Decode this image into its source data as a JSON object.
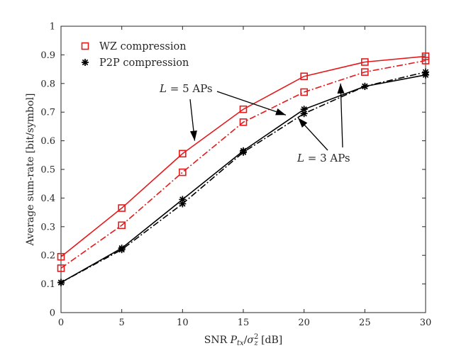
{
  "chart_data": {
    "type": "line",
    "title": "",
    "xlabel_prefix": "SNR ",
    "xlabel_math": "P",
    "xlabel_sub1": "tx",
    "xlabel_slash": "/",
    "xlabel_sigma": "σ",
    "xlabel_sup": "2",
    "xlabel_sub2": "z",
    "xlabel_suffix": " [dB]",
    "ylabel": "Average sum-rate [bit/symbol]",
    "xlim": [
      0,
      30
    ],
    "ylim": [
      0,
      1
    ],
    "xticks": [
      0,
      5,
      10,
      15,
      20,
      25,
      30
    ],
    "xtick_labels": [
      "0",
      "5",
      "10",
      "15",
      "20",
      "25",
      "30"
    ],
    "yticks": [
      0,
      0.1,
      0.2,
      0.3,
      0.4,
      0.5,
      0.6,
      0.7,
      0.8,
      0.9,
      1
    ],
    "ytick_labels": [
      "0",
      "0.1",
      "0.2",
      "0.3",
      "0.4",
      "0.5",
      "0.6",
      "0.7",
      "0.8",
      "0.9",
      "1"
    ],
    "grid": false,
    "legend_position": "top-left",
    "x": [
      0,
      5,
      10,
      15,
      20,
      25,
      30
    ],
    "series": [
      {
        "name": "WZ compression, L = 5 APs",
        "color": "#e41a1c",
        "line": "solid",
        "marker": "square",
        "values": [
          0.195,
          0.365,
          0.555,
          0.71,
          0.825,
          0.875,
          0.895
        ]
      },
      {
        "name": "WZ compression, L = 3 APs",
        "color": "#e41a1c",
        "line": "dashdot",
        "marker": "square",
        "values": [
          0.155,
          0.305,
          0.49,
          0.665,
          0.77,
          0.84,
          0.88
        ]
      },
      {
        "name": "P2P compression, L = 5 APs",
        "color": "#000000",
        "line": "solid",
        "marker": "asterisk",
        "values": [
          0.105,
          0.225,
          0.395,
          0.565,
          0.71,
          0.79,
          0.83
        ]
      },
      {
        "name": "P2P compression, L = 3 APs",
        "color": "#000000",
        "line": "dashdot",
        "marker": "asterisk",
        "values": [
          0.105,
          0.22,
          0.38,
          0.56,
          0.695,
          0.79,
          0.84
        ]
      }
    ],
    "legend": [
      {
        "label": "WZ compression",
        "color": "#e41a1c",
        "marker": "square"
      },
      {
        "label": "P2P compression",
        "color": "#000000",
        "marker": "asterisk"
      }
    ],
    "annotations": [
      {
        "math": "L",
        "rest": " = 5 APs",
        "arrows_to": [
          [
            11,
            0.6
          ],
          [
            18.5,
            0.69
          ]
        ]
      },
      {
        "math": "L",
        "rest": " = 3 APs",
        "arrows_to": [
          [
            19.5,
            0.68
          ],
          [
            23,
            0.8
          ]
        ]
      }
    ]
  }
}
